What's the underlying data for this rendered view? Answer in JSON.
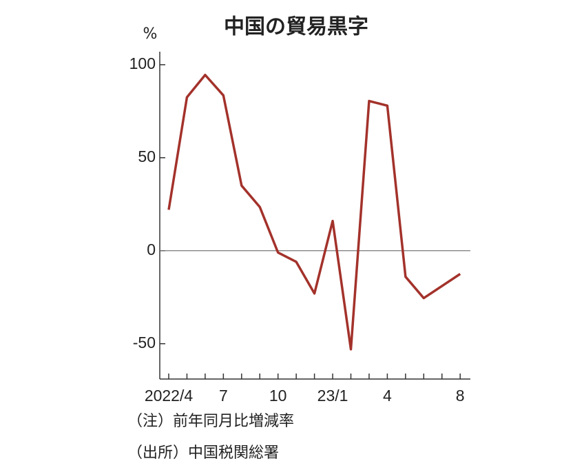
{
  "chart_data": {
    "type": "line",
    "title": "中国の貿易黒字",
    "y_unit": "%",
    "categories": [
      "2022/4",
      null,
      null,
      "7",
      null,
      null,
      "10",
      null,
      null,
      "23/1",
      null,
      null,
      "4",
      null,
      null,
      null,
      "8"
    ],
    "series": [
      {
        "name": null,
        "color": "#a3322b",
        "values": [
          22,
          82.5,
          94.5,
          83.5,
          35,
          23.5,
          -1,
          -6,
          -23,
          16,
          -53,
          80.5,
          78,
          -14,
          -25.5,
          -19,
          -12.5
        ]
      }
    ],
    "ylim": [
      -69,
      107
    ],
    "yticks": [
      -50,
      0,
      50,
      100
    ],
    "zero_line": true,
    "notes": [
      "（注）前年同月比増減率",
      "（出所）中国税関総署"
    ]
  }
}
